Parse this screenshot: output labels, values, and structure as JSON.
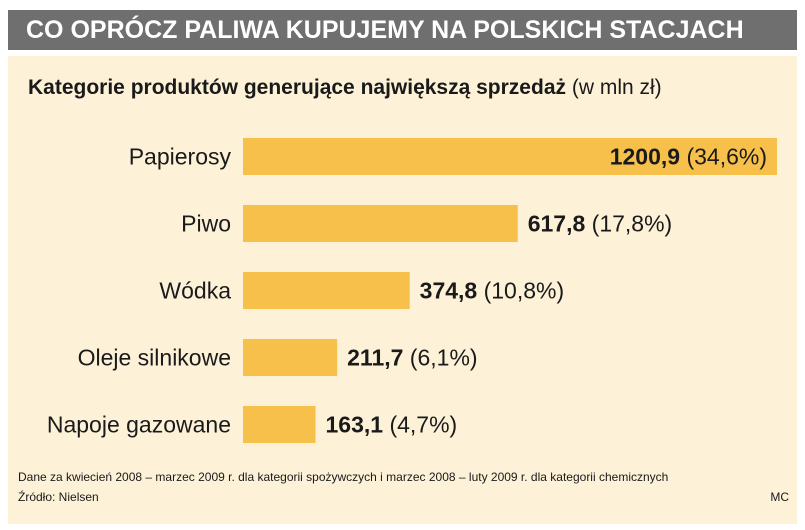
{
  "header": {
    "title": "CO OPRÓCZ PALIWA KUPUJEMY NA POLSKICH STACJACH"
  },
  "colors": {
    "header_bg": "#6f6f6f",
    "panel_bg": "#fdf1d8",
    "bar": "#f7c04a"
  },
  "chart_data": {
    "type": "bar",
    "orientation": "horizontal",
    "title": "Kategorie produktów generujące największą sprzedaż",
    "title_unit": "(w mln zł)",
    "categories": [
      "Papierosy",
      "Piwo",
      "Wódka",
      "Oleje silnikowe",
      "Napoje gazowane"
    ],
    "values": [
      1200.9,
      617.8,
      374.8,
      211.7,
      163.1
    ],
    "value_labels": [
      "1200,9",
      "617,8",
      "374,8",
      "211,7",
      "163,1"
    ],
    "share_labels": [
      "(34,6%)",
      "(17,8%)",
      "(10,8%)",
      "(6,1%)",
      "(4,7%)"
    ],
    "xlim": [
      0,
      1200.9
    ],
    "grid": false,
    "legend": "none"
  },
  "footnote": "Dane za kwiecień 2008 – marzec 2009 r. dla kategorii spożywczych i marzec 2008 – luty 2009 r. dla kategorii chemicznych",
  "source": "Źródło: Nielsen",
  "credit": "MC"
}
